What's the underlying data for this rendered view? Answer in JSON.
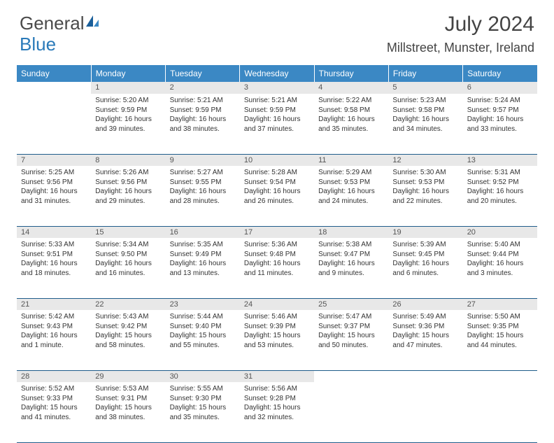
{
  "logo": {
    "main": "General",
    "accent": "Blue"
  },
  "title": "July 2024",
  "location": "Millstreet, Munster, Ireland",
  "colors": {
    "header_bg": "#3b88c4",
    "header_text": "#ffffff",
    "daynum_bg": "#e8e8e8",
    "border": "#1f5c8a",
    "logo_gray": "#4a4a4a",
    "logo_blue": "#2a7ab9"
  },
  "weekdays": [
    "Sunday",
    "Monday",
    "Tuesday",
    "Wednesday",
    "Thursday",
    "Friday",
    "Saturday"
  ],
  "weeks": [
    [
      null,
      {
        "d": "1",
        "sr": "5:20 AM",
        "ss": "9:59 PM",
        "dl": "16 hours and 39 minutes."
      },
      {
        "d": "2",
        "sr": "5:21 AM",
        "ss": "9:59 PM",
        "dl": "16 hours and 38 minutes."
      },
      {
        "d": "3",
        "sr": "5:21 AM",
        "ss": "9:59 PM",
        "dl": "16 hours and 37 minutes."
      },
      {
        "d": "4",
        "sr": "5:22 AM",
        "ss": "9:58 PM",
        "dl": "16 hours and 35 minutes."
      },
      {
        "d": "5",
        "sr": "5:23 AM",
        "ss": "9:58 PM",
        "dl": "16 hours and 34 minutes."
      },
      {
        "d": "6",
        "sr": "5:24 AM",
        "ss": "9:57 PM",
        "dl": "16 hours and 33 minutes."
      }
    ],
    [
      {
        "d": "7",
        "sr": "5:25 AM",
        "ss": "9:56 PM",
        "dl": "16 hours and 31 minutes."
      },
      {
        "d": "8",
        "sr": "5:26 AM",
        "ss": "9:56 PM",
        "dl": "16 hours and 29 minutes."
      },
      {
        "d": "9",
        "sr": "5:27 AM",
        "ss": "9:55 PM",
        "dl": "16 hours and 28 minutes."
      },
      {
        "d": "10",
        "sr": "5:28 AM",
        "ss": "9:54 PM",
        "dl": "16 hours and 26 minutes."
      },
      {
        "d": "11",
        "sr": "5:29 AM",
        "ss": "9:53 PM",
        "dl": "16 hours and 24 minutes."
      },
      {
        "d": "12",
        "sr": "5:30 AM",
        "ss": "9:53 PM",
        "dl": "16 hours and 22 minutes."
      },
      {
        "d": "13",
        "sr": "5:31 AM",
        "ss": "9:52 PM",
        "dl": "16 hours and 20 minutes."
      }
    ],
    [
      {
        "d": "14",
        "sr": "5:33 AM",
        "ss": "9:51 PM",
        "dl": "16 hours and 18 minutes."
      },
      {
        "d": "15",
        "sr": "5:34 AM",
        "ss": "9:50 PM",
        "dl": "16 hours and 16 minutes."
      },
      {
        "d": "16",
        "sr": "5:35 AM",
        "ss": "9:49 PM",
        "dl": "16 hours and 13 minutes."
      },
      {
        "d": "17",
        "sr": "5:36 AM",
        "ss": "9:48 PM",
        "dl": "16 hours and 11 minutes."
      },
      {
        "d": "18",
        "sr": "5:38 AM",
        "ss": "9:47 PM",
        "dl": "16 hours and 9 minutes."
      },
      {
        "d": "19",
        "sr": "5:39 AM",
        "ss": "9:45 PM",
        "dl": "16 hours and 6 minutes."
      },
      {
        "d": "20",
        "sr": "5:40 AM",
        "ss": "9:44 PM",
        "dl": "16 hours and 3 minutes."
      }
    ],
    [
      {
        "d": "21",
        "sr": "5:42 AM",
        "ss": "9:43 PM",
        "dl": "16 hours and 1 minute."
      },
      {
        "d": "22",
        "sr": "5:43 AM",
        "ss": "9:42 PM",
        "dl": "15 hours and 58 minutes."
      },
      {
        "d": "23",
        "sr": "5:44 AM",
        "ss": "9:40 PM",
        "dl": "15 hours and 55 minutes."
      },
      {
        "d": "24",
        "sr": "5:46 AM",
        "ss": "9:39 PM",
        "dl": "15 hours and 53 minutes."
      },
      {
        "d": "25",
        "sr": "5:47 AM",
        "ss": "9:37 PM",
        "dl": "15 hours and 50 minutes."
      },
      {
        "d": "26",
        "sr": "5:49 AM",
        "ss": "9:36 PM",
        "dl": "15 hours and 47 minutes."
      },
      {
        "d": "27",
        "sr": "5:50 AM",
        "ss": "9:35 PM",
        "dl": "15 hours and 44 minutes."
      }
    ],
    [
      {
        "d": "28",
        "sr": "5:52 AM",
        "ss": "9:33 PM",
        "dl": "15 hours and 41 minutes."
      },
      {
        "d": "29",
        "sr": "5:53 AM",
        "ss": "9:31 PM",
        "dl": "15 hours and 38 minutes."
      },
      {
        "d": "30",
        "sr": "5:55 AM",
        "ss": "9:30 PM",
        "dl": "15 hours and 35 minutes."
      },
      {
        "d": "31",
        "sr": "5:56 AM",
        "ss": "9:28 PM",
        "dl": "15 hours and 32 minutes."
      },
      null,
      null,
      null
    ]
  ],
  "labels": {
    "sunrise": "Sunrise:",
    "sunset": "Sunset:",
    "daylight": "Daylight:"
  }
}
